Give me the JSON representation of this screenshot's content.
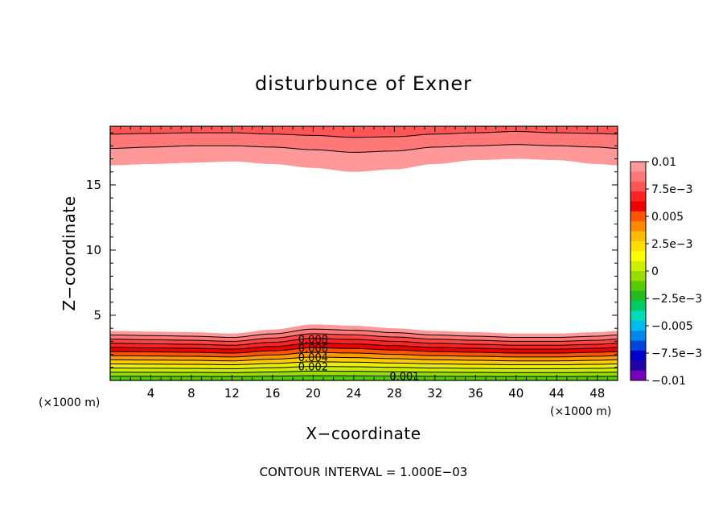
{
  "chart_data": {
    "type": "contour",
    "title": "disturbunce of Exner",
    "xlabel": "X−coordinate",
    "ylabel": "Z−coordinate",
    "x_unit_left": "(×1000 m)",
    "x_unit_right": "(×1000 m)",
    "xlim": [
      0,
      50
    ],
    "ylim": [
      0,
      19.5
    ],
    "x_ticks": [
      4,
      8,
      12,
      16,
      20,
      24,
      28,
      32,
      36,
      40,
      44,
      48
    ],
    "x_tick_labels": [
      "4",
      "8",
      "12",
      "16",
      "20",
      "24",
      "28",
      "32",
      "36",
      "40",
      "44",
      "48"
    ],
    "y_ticks": [
      5,
      10,
      15
    ],
    "y_tick_labels": [
      "5",
      "10",
      "15"
    ],
    "footer": "CONTOUR INTERVAL = 1.000E−03",
    "colorbar": {
      "labels": [
        "0.01",
        "7.5e−3",
        "0.005",
        "2.5e−3",
        "0",
        "−2.5e−3",
        "−0.005",
        "−7.5e−3",
        "−0.01"
      ],
      "levels": [
        0.01,
        0.009,
        0.008,
        0.007,
        0.006,
        0.005,
        0.004,
        0.003,
        0.002,
        0.001,
        0,
        -0.001,
        -0.002,
        -0.003,
        -0.004,
        -0.005,
        -0.006,
        -0.007,
        -0.008,
        -0.009,
        -0.01
      ],
      "colors": [
        "#ff9999",
        "#ff7777",
        "#ff5555",
        "#ff2222",
        "#ee0000",
        "#ff5500",
        "#ff8800",
        "#ffbb00",
        "#ffdd00",
        "#ffff00",
        "#ccee00",
        "#99dd00",
        "#55cc00",
        "#22bb22",
        "#00cc66",
        "#00ddbb",
        "#00bbee",
        "#0088ee",
        "#0044dd",
        "#0000cc",
        "#2200aa",
        "#7700bb"
      ]
    },
    "contour_labels": [
      {
        "text": "0.008",
        "x": 20,
        "y": 3.0
      },
      {
        "text": "0.006",
        "x": 20,
        "y": 2.3
      },
      {
        "text": "0.004",
        "x": 20,
        "y": 1.6
      },
      {
        "text": "0.002",
        "x": 20,
        "y": 0.9
      },
      {
        "text": "0.001",
        "x": 29,
        "y": 0.15
      }
    ],
    "lower_band": {
      "levels": [
        0.0095,
        0.009,
        0.008,
        0.007,
        0.006,
        0.005,
        0.004,
        0.003,
        0.002,
        0.001
      ],
      "fill_colors": [
        "#ff9999",
        "#ff7777",
        "#ff4444",
        "#ff2222",
        "#ee0000",
        "#ff5500",
        "#ff9900",
        "#ffcc00",
        "#eeee00",
        "#ccee00",
        "#99dd00",
        "#55cc00"
      ],
      "ridge_x": [
        0,
        4,
        8,
        12,
        16,
        20,
        24,
        28,
        32,
        36,
        40,
        44,
        48,
        50
      ],
      "top_heights": [
        3.8,
        3.75,
        3.7,
        3.6,
        3.9,
        4.3,
        4.2,
        4.0,
        3.8,
        3.7,
        3.6,
        3.6,
        3.7,
        3.8
      ]
    },
    "upper_band": {
      "fill_colors": [
        "#ff9999",
        "#ff7777",
        "#ff5555"
      ],
      "boundary_x": [
        0,
        4,
        8,
        12,
        16,
        20,
        24,
        28,
        32,
        36,
        40,
        44,
        48,
        50
      ],
      "lower_heights": [
        16.5,
        16.6,
        16.7,
        16.8,
        16.6,
        16.3,
        16.0,
        16.2,
        16.6,
        16.9,
        17.0,
        16.9,
        16.6,
        16.5
      ],
      "mid_heights": [
        17.8,
        17.9,
        18.0,
        18.0,
        17.9,
        17.7,
        17.5,
        17.6,
        17.9,
        18.0,
        18.1,
        18.0,
        17.9,
        17.8
      ],
      "top_heights": [
        18.9,
        18.95,
        19.0,
        19.0,
        18.9,
        18.8,
        18.65,
        18.7,
        18.9,
        19.0,
        19.1,
        19.0,
        18.95,
        18.9
      ]
    }
  }
}
